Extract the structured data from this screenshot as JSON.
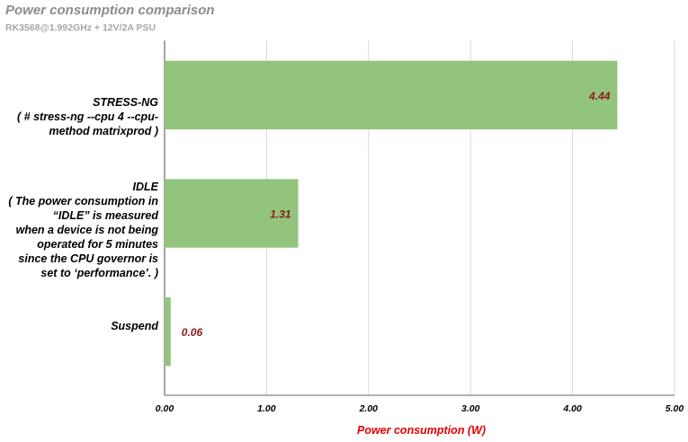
{
  "chart_data": {
    "type": "bar",
    "orientation": "horizontal",
    "title": "Power consumption comparison",
    "subtitle": "RK3568@1.992GHz + 12V/2A PSU",
    "xlabel": "Power consumption (W)",
    "ylabel": "",
    "xlim": [
      0,
      5
    ],
    "xticks": [
      "0.00",
      "1.00",
      "2.00",
      "3.00",
      "4.00",
      "5.00"
    ],
    "grid": "vertical",
    "bar_color": "#93c47d",
    "label_color": "#8b1a1a",
    "categories": [
      "STRESS-NG\n( # stress-ng --cpu 4 --cpu-\nmethod matrixprod )",
      "IDLE\n( The power consumption in\n“IDLE” is measured\nwhen a device is not being\noperated for 5 minutes\nsince the CPU governor is\nset to ‘performance’. )",
      "Suspend"
    ],
    "values": [
      4.44,
      1.31,
      0.06
    ],
    "data_labels": [
      "4.44",
      "1.31",
      "0.06"
    ]
  }
}
